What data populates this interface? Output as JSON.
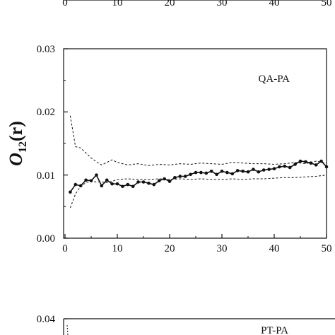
{
  "chart_data": [
    {
      "type": "line",
      "panel": "top (cropped)",
      "x_ticks": [
        "0",
        "10",
        "20",
        "30",
        "40",
        "50"
      ]
    },
    {
      "type": "line",
      "annotation": "QA-PA",
      "ylabel_main": "O",
      "ylabel_sub": "12",
      "ylabel_paren": "(r)",
      "xlim": [
        0,
        50
      ],
      "ylim": [
        0,
        0.03
      ],
      "x_ticks": [
        "0",
        "10",
        "20",
        "30",
        "40",
        "50"
      ],
      "y_ticks": [
        "0.00",
        "0.01",
        "0.02",
        "0.03"
      ],
      "x_tick_values": [
        0,
        10,
        20,
        30,
        40,
        50
      ],
      "y_tick_values": [
        0,
        0.01,
        0.02,
        0.03
      ],
      "series": [
        {
          "style": "solid-markers",
          "x": [
            1,
            2,
            3,
            4,
            5,
            6,
            7,
            8,
            9,
            10,
            11,
            12,
            13,
            14,
            15,
            16,
            17,
            18,
            19,
            20,
            21,
            22,
            23,
            24,
            25,
            26,
            27,
            28,
            29,
            30,
            31,
            32,
            33,
            34,
            35,
            36,
            37,
            38,
            39,
            40,
            41,
            42,
            43,
            44,
            45,
            46,
            47,
            48,
            49,
            50
          ],
          "y": [
            0.0073,
            0.0085,
            0.0083,
            0.0092,
            0.0091,
            0.01,
            0.0083,
            0.0092,
            0.0086,
            0.0086,
            0.0082,
            0.0085,
            0.0082,
            0.0089,
            0.0089,
            0.0087,
            0.0085,
            0.0091,
            0.0094,
            0.009,
            0.0096,
            0.0098,
            0.0098,
            0.0101,
            0.0104,
            0.0104,
            0.0103,
            0.0106,
            0.0101,
            0.0106,
            0.0104,
            0.0102,
            0.0107,
            0.0106,
            0.0105,
            0.0109,
            0.0105,
            0.0108,
            0.0109,
            0.011,
            0.0113,
            0.0114,
            0.0112,
            0.0117,
            0.0122,
            0.0121,
            0.0119,
            0.0116,
            0.0122,
            0.0113
          ]
        },
        {
          "style": "dashed-upper",
          "x": [
            1,
            2,
            3,
            4,
            5,
            6,
            7,
            8,
            9,
            10,
            12,
            14,
            16,
            18,
            20,
            22,
            24,
            26,
            28,
            30,
            32,
            34,
            36,
            38,
            40,
            42,
            44,
            46,
            48,
            50
          ],
          "y": [
            0.0194,
            0.0145,
            0.0143,
            0.0135,
            0.0127,
            0.0121,
            0.0116,
            0.012,
            0.0124,
            0.012,
            0.0116,
            0.0118,
            0.0115,
            0.0117,
            0.0116,
            0.0118,
            0.0117,
            0.0119,
            0.0118,
            0.0117,
            0.012,
            0.0119,
            0.0118,
            0.0118,
            0.0117,
            0.0118,
            0.012,
            0.0118,
            0.0122,
            0.0119
          ]
        },
        {
          "style": "dashed-lower",
          "x": [
            1,
            2,
            3,
            4,
            5,
            6,
            7,
            8,
            9,
            10,
            12,
            14,
            16,
            18,
            20,
            22,
            24,
            26,
            28,
            30,
            32,
            34,
            36,
            38,
            40,
            42,
            44,
            46,
            48,
            50
          ],
          "y": [
            0.0048,
            0.007,
            0.0082,
            0.0088,
            0.009,
            0.0089,
            0.0089,
            0.0088,
            0.009,
            0.0093,
            0.0094,
            0.0093,
            0.0093,
            0.0094,
            0.0093,
            0.0094,
            0.0093,
            0.0094,
            0.0093,
            0.0093,
            0.0094,
            0.0093,
            0.0094,
            0.0094,
            0.0095,
            0.0096,
            0.0096,
            0.0097,
            0.0098,
            0.01
          ]
        }
      ]
    },
    {
      "type": "line",
      "panel": "bottom (cropped)",
      "annotation": "PT-PA",
      "y_ticks": [
        "0.04"
      ]
    }
  ]
}
